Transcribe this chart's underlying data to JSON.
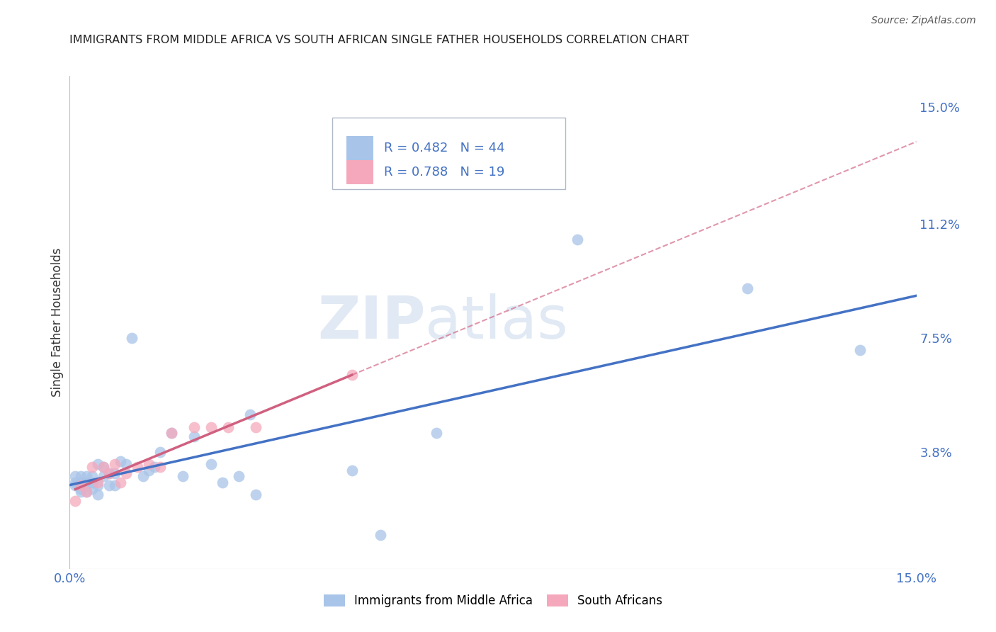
{
  "title": "IMMIGRANTS FROM MIDDLE AFRICA VS SOUTH AFRICAN SINGLE FATHER HOUSEHOLDS CORRELATION CHART",
  "source": "Source: ZipAtlas.com",
  "xlabel": "",
  "ylabel": "Single Father Households",
  "xlim": [
    0.0,
    0.15
  ],
  "ylim": [
    0.0,
    0.16
  ],
  "right_yticks": [
    0.038,
    0.075,
    0.112,
    0.15
  ],
  "right_ytick_labels": [
    "3.8%",
    "7.5%",
    "11.2%",
    "15.0%"
  ],
  "xtick_labels": [
    "0.0%",
    "",
    "",
    "",
    "",
    "",
    "15.0%"
  ],
  "xtick_vals": [
    0.0,
    0.025,
    0.05,
    0.075,
    0.1,
    0.125,
    0.15
  ],
  "blue_R": 0.482,
  "blue_N": 44,
  "pink_R": 0.788,
  "pink_N": 19,
  "blue_color": "#a8c4e8",
  "pink_color": "#f5a8bc",
  "blue_line_color": "#4472c4",
  "pink_line_color": "#d06080",
  "background_color": "#ffffff",
  "grid_color": "#cccccc",
  "blue_x": [
    0.001,
    0.001,
    0.001,
    0.002,
    0.002,
    0.002,
    0.002,
    0.003,
    0.003,
    0.003,
    0.003,
    0.004,
    0.004,
    0.004,
    0.005,
    0.005,
    0.005,
    0.006,
    0.006,
    0.007,
    0.007,
    0.008,
    0.008,
    0.009,
    0.01,
    0.011,
    0.013,
    0.014,
    0.015,
    0.016,
    0.018,
    0.02,
    0.022,
    0.025,
    0.027,
    0.03,
    0.032,
    0.033,
    0.05,
    0.055,
    0.065,
    0.09,
    0.12,
    0.14
  ],
  "blue_y": [
    0.027,
    0.028,
    0.03,
    0.025,
    0.026,
    0.028,
    0.03,
    0.025,
    0.027,
    0.028,
    0.03,
    0.026,
    0.028,
    0.03,
    0.024,
    0.027,
    0.034,
    0.03,
    0.033,
    0.027,
    0.031,
    0.027,
    0.031,
    0.035,
    0.034,
    0.075,
    0.03,
    0.032,
    0.033,
    0.038,
    0.044,
    0.03,
    0.043,
    0.034,
    0.028,
    0.03,
    0.05,
    0.024,
    0.032,
    0.011,
    0.044,
    0.107,
    0.091,
    0.071
  ],
  "pink_x": [
    0.001,
    0.002,
    0.003,
    0.004,
    0.005,
    0.006,
    0.007,
    0.008,
    0.009,
    0.01,
    0.012,
    0.014,
    0.016,
    0.018,
    0.022,
    0.025,
    0.028,
    0.033,
    0.05
  ],
  "pink_y": [
    0.022,
    0.027,
    0.025,
    0.033,
    0.028,
    0.033,
    0.031,
    0.034,
    0.028,
    0.031,
    0.033,
    0.034,
    0.033,
    0.044,
    0.046,
    0.046,
    0.046,
    0.046,
    0.063
  ]
}
